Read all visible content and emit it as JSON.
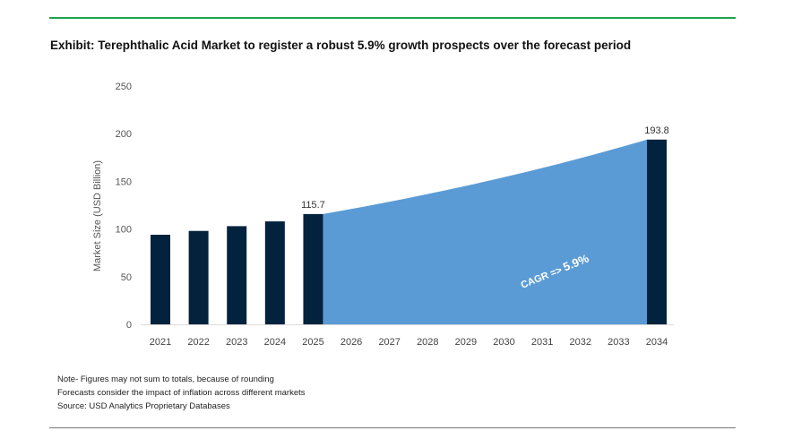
{
  "title": "Exhibit: Terephthalic Acid Market to register a robust 5.9% growth prospects over the forecast period",
  "notes": [
    "Note- Figures may not sum to totals, because of rounding",
    "Forecasts consider the impact of inflation across different markets",
    "Source: USD Analytics Proprietary Databases"
  ],
  "chart_data": {
    "type": "bar",
    "title": "Exhibit: Terephthalic Acid Market to register a robust 5.9% growth prospects over the forecast period",
    "xlabel": "",
    "ylabel": "Market Size (USD Billion)",
    "ylim": [
      0,
      250
    ],
    "yticks": [
      0,
      50,
      100,
      150,
      200,
      250
    ],
    "categories": [
      "2021",
      "2022",
      "2023",
      "2024",
      "2025",
      "2026",
      "2027",
      "2028",
      "2029",
      "2030",
      "2031",
      "2032",
      "2033",
      "2034"
    ],
    "bars": [
      {
        "year": "2021",
        "value": 94
      },
      {
        "year": "2022",
        "value": 98
      },
      {
        "year": "2023",
        "value": 103
      },
      {
        "year": "2024",
        "value": 108
      },
      {
        "year": "2025",
        "value": 115.7,
        "label": "115.7"
      },
      {
        "year": "2034",
        "value": 193.8,
        "label": "193.8"
      }
    ],
    "area": {
      "from": "2025",
      "to": "2034",
      "start": 115.7,
      "end": 193.8,
      "cagr": 0.059
    },
    "annotation": {
      "prefix": "CAGR =>",
      "value": "5.9%"
    },
    "colors": {
      "bar": "#03223d",
      "area": "#5b9bd5",
      "axis": "#d9d9d9"
    },
    "grid": false,
    "legend": "none"
  }
}
